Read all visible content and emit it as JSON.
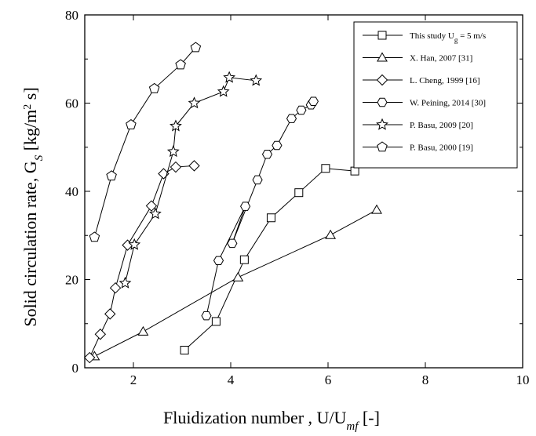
{
  "chart_data": {
    "type": "line",
    "xlabel": "Fluidization number ,  U/U",
    "xlabel_sub": "mf",
    "xlabel_unit": " [-]",
    "ylabel": "Solid circulation rate, G",
    "ylabel_sub": "S",
    "ylabel_unit": "  [kg/m",
    "ylabel_sup": "2",
    "ylabel_unit_end": " s]",
    "xlim": [
      1,
      10
    ],
    "ylim": [
      0,
      80
    ],
    "x_ticks": [
      2,
      4,
      6,
      8,
      10
    ],
    "y_ticks": [
      0,
      20,
      40,
      60,
      80
    ],
    "legend_position": "top-right",
    "series": [
      {
        "name": "This study U",
        "name_sub": "g",
        "name_tail": " = 5 m/s",
        "marker": "square",
        "x": [
          3.05,
          3.7,
          4.28,
          4.83,
          5.4,
          5.95,
          6.55
        ],
        "y": [
          4,
          10.5,
          24.5,
          34,
          39.7,
          45.2,
          44.6
        ]
      },
      {
        "name": "X. Han, 2007 [31]",
        "marker": "triangle",
        "x": [
          1.2,
          2.2,
          4.15,
          6.05,
          7.0
        ],
        "y": [
          2.6,
          8.2,
          20.5,
          30.1,
          35.8
        ]
      },
      {
        "name": "L. Cheng, 1999 [16]",
        "marker": "diamond",
        "x": [
          1.1,
          1.32,
          1.52,
          1.63,
          1.88,
          2.37,
          2.62,
          2.87,
          3.25
        ],
        "y": [
          2.3,
          7.6,
          12.2,
          18.1,
          27.8,
          36.7,
          44.0,
          45.5,
          45.8
        ]
      },
      {
        "name": "W. Peining, 2014 [30]",
        "marker": "hexagon",
        "x": [
          3.5,
          3.75,
          4.3,
          4.03,
          4.55,
          4.75,
          4.95,
          5.25,
          5.45,
          5.65,
          5.7
        ],
        "y": [
          11.8,
          24.3,
          36.6,
          28.2,
          42.6,
          48.4,
          50.4,
          56.5,
          58.4,
          59.6,
          60.4
        ]
      },
      {
        "name": "P. Basu, 2009 [20]",
        "marker": "star",
        "x": [
          1.83,
          2.02,
          2.45,
          2.82,
          2.87,
          3.25,
          3.85,
          3.97,
          4.52
        ],
        "y": [
          19.2,
          27.9,
          34.9,
          49.0,
          54.8,
          60.0,
          62.6,
          65.8,
          65.1
        ]
      },
      {
        "name": "P. Basu, 2000  [19]",
        "marker": "pentagon",
        "x": [
          1.2,
          1.55,
          1.95,
          2.43,
          2.97,
          3.28
        ],
        "y": [
          29.6,
          43.5,
          55.1,
          63.3,
          68.7,
          72.6
        ]
      }
    ]
  }
}
